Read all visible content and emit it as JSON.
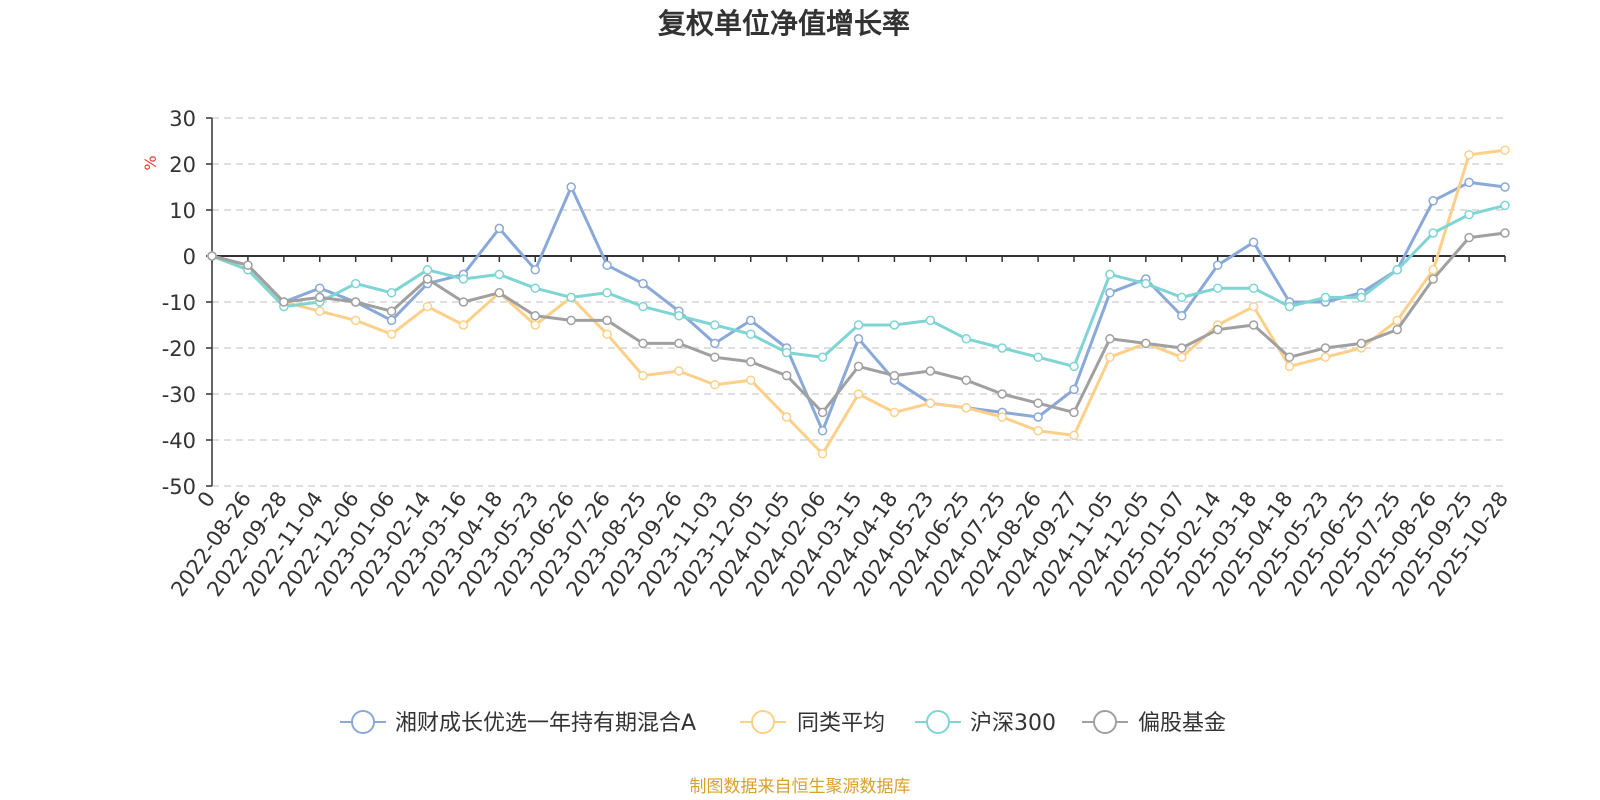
{
  "chart_data": {
    "type": "line",
    "title": "复权单位净值增长率",
    "ylabel": "%",
    "ylim": [
      -50,
      30
    ],
    "yticks": [
      30,
      20,
      10,
      0,
      -10,
      -20,
      -30,
      -40,
      -50
    ],
    "grid": true,
    "legend_position": "bottom",
    "x_tick_labels": [
      "0",
      "2022-08-26",
      "2022-09-28",
      "2022-11-04",
      "2022-12-06",
      "2023-01-06",
      "2023-02-14",
      "2023-03-16",
      "2023-04-18",
      "2023-05-23",
      "2023-06-26",
      "2023-07-26",
      "2023-08-25",
      "2023-09-26",
      "2023-11-03",
      "2023-12-05",
      "2024-01-05",
      "2024-02-06",
      "2024-03-15",
      "2024-04-18",
      "2024-05-23",
      "2024-06-25",
      "2024-07-25",
      "2024-08-26",
      "2024-09-27",
      "2024-11-05",
      "2024-12-05",
      "2025-01-07",
      "2025-02-14",
      "2025-03-18",
      "2025-04-18",
      "2025-05-23",
      "2025-06-25",
      "2025-07-25",
      "2025-08-26",
      "2025-09-25",
      "2025-10-28"
    ],
    "series": [
      {
        "name": "湘财成长优选一年持有期混合A",
        "color": "#8aa8d8",
        "values": [
          0,
          -2,
          -10,
          -7,
          -10,
          -14,
          -6,
          -4,
          6,
          -3,
          15,
          -2,
          -6,
          -12,
          -19,
          -14,
          -20,
          -38,
          -18,
          -27,
          -32,
          -33,
          -34,
          -35,
          -29,
          -8,
          -5,
          -13,
          -2,
          3,
          -10,
          -10,
          -8,
          -3,
          12,
          16,
          15
        ]
      },
      {
        "name": "同类平均",
        "color": "#fdd08a",
        "values": [
          0,
          -3,
          -10,
          -12,
          -14,
          -17,
          -11,
          -15,
          -8,
          -15,
          -9,
          -17,
          -26,
          -25,
          -28,
          -27,
          -35,
          -43,
          -30,
          -34,
          -32,
          -33,
          -35,
          -38,
          -39,
          -22,
          -19,
          -22,
          -15,
          -11,
          -24,
          -22,
          -20,
          -14,
          -3,
          22,
          23
        ]
      },
      {
        "name": "沪深300",
        "color": "#7fd4d4",
        "values": [
          0,
          -3,
          -11,
          -10,
          -6,
          -8,
          -3,
          -5,
          -4,
          -7,
          -9,
          -8,
          -11,
          -13,
          -15,
          -17,
          -21,
          -22,
          -15,
          -15,
          -14,
          -18,
          -20,
          -22,
          -24,
          -4,
          -6,
          -9,
          -7,
          -7,
          -11,
          -9,
          -9,
          -3,
          5,
          9,
          11
        ]
      },
      {
        "name": "偏股基金",
        "color": "#a0a0a0",
        "values": [
          0,
          -2,
          -10,
          -9,
          -10,
          -12,
          -5,
          -10,
          -8,
          -13,
          -14,
          -14,
          -19,
          -19,
          -22,
          -23,
          -26,
          -34,
          -24,
          -26,
          -25,
          -27,
          -30,
          -32,
          -34,
          -18,
          -19,
          -20,
          -16,
          -15,
          -22,
          -20,
          -19,
          -16,
          -5,
          4,
          5
        ]
      }
    ]
  },
  "source_note": "制图数据来自恒生聚源数据库",
  "colors": {
    "unit_label": "#e53935",
    "source_note": "#d9a02a",
    "axis": "#333333",
    "grid": "#cccccc"
  }
}
